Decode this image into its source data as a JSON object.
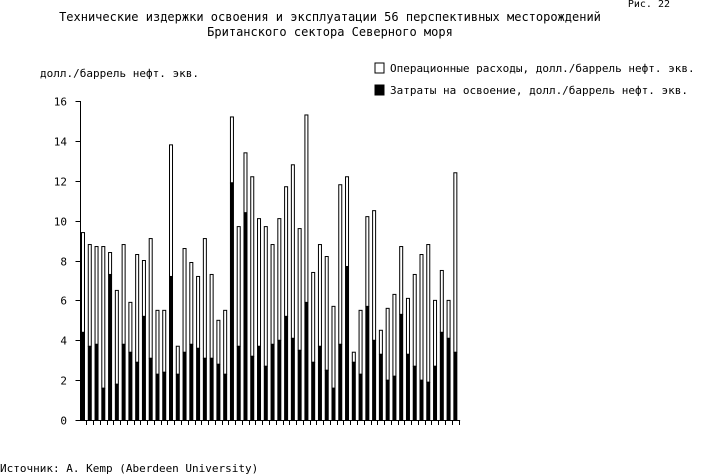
{
  "figure_label": "Рис. 22",
  "source": "Источник: A. Kemp (Aberdeen University)",
  "chart_data": {
    "type": "bar",
    "stacked": true,
    "title": "Технические издержки освоения и эксплуатации 56 перспективных месторождений",
    "subtitle": "Британского сектора Северного моря",
    "ylabel": "долл./баррель нефт. экв.",
    "xlabel": "",
    "ylim": [
      0,
      16
    ],
    "yticks": [
      0,
      2,
      4,
      6,
      8,
      10,
      12,
      14,
      16
    ],
    "yticklabels": [
      "0",
      "2",
      "4",
      "6",
      "8",
      "10",
      "12",
      "14",
      "16"
    ],
    "legend_position": "top-right",
    "grid": false,
    "series": [
      {
        "name": "Затраты на освоение, долл./баррель нефт. экв.",
        "color": "#000000",
        "values": [
          4.4,
          3.7,
          3.8,
          1.6,
          7.3,
          1.8,
          3.8,
          3.4,
          2.9,
          5.2,
          3.1,
          2.3,
          2.4,
          7.2,
          2.3,
          3.4,
          3.8,
          3.6,
          3.1,
          3.1,
          2.8,
          2.3,
          11.9,
          3.7,
          10.4,
          3.2,
          3.7,
          2.7,
          3.8,
          4.0,
          5.2,
          4.1,
          3.5,
          5.9,
          2.9,
          3.7,
          2.5,
          1.6,
          3.8,
          7.7,
          2.9,
          2.3,
          5.7,
          4.0,
          3.3,
          2.0,
          2.2,
          5.3,
          3.3,
          2.7,
          2.0,
          1.9,
          2.7,
          4.4,
          4.1,
          3.4
        ]
      },
      {
        "name": "Операционные расходы, долл./баррель нефт. экв.",
        "color": "#ffffff",
        "values": [
          5.0,
          5.1,
          4.9,
          7.1,
          1.1,
          4.7,
          5.0,
          2.5,
          5.4,
          2.8,
          6.0,
          3.2,
          3.1,
          6.6,
          1.4,
          5.2,
          4.1,
          3.6,
          6.0,
          4.2,
          2.2,
          3.2,
          3.3,
          6.0,
          3.0,
          9.0,
          6.4,
          7.0,
          5.0,
          6.1,
          6.5,
          8.7,
          6.1,
          9.4,
          4.5,
          5.1,
          5.7,
          4.1,
          8.0,
          4.5,
          0.5,
          3.2,
          4.5,
          6.5,
          1.2,
          3.6,
          4.1,
          3.4,
          2.8,
          4.6,
          6.3,
          6.9,
          3.3,
          3.1,
          1.9,
          9.0
        ]
      }
    ]
  }
}
